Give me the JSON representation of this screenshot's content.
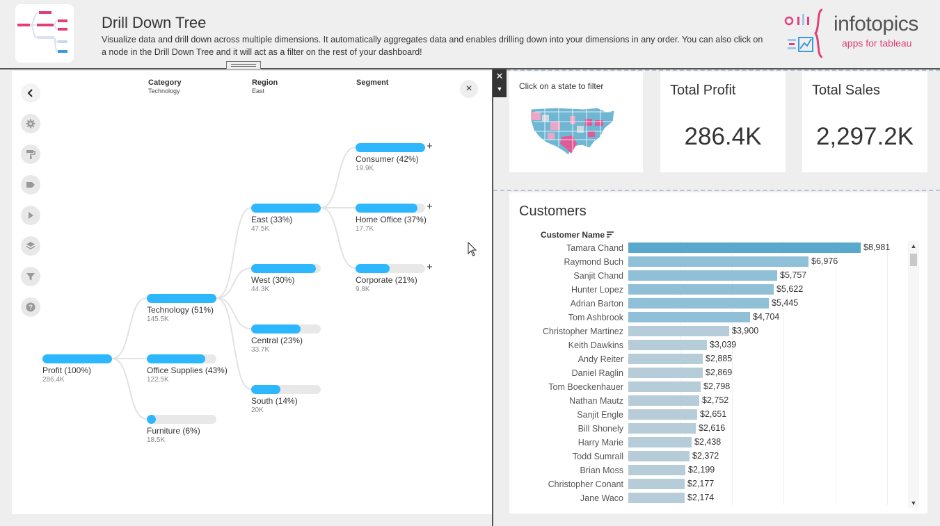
{
  "header": {
    "title": "Drill Down Tree",
    "desc1": "Visualize data and drill down across multiple dimensions. It automatically aggregates data and enables drilling down into your dimensions in any order. ",
    "desc2": "You can also click on a node in the Drill Down Tree and it will act as a filter on the rest of your dashboard!",
    "brand_name": "infotopics",
    "brand_sub": "apps for tableau"
  },
  "toolbar": {
    "items": [
      "back-icon",
      "gear-icon",
      "paint-roller-icon",
      "tag-icon",
      "play-icon",
      "layers-icon",
      "filter-icon",
      "help-icon"
    ]
  },
  "tree": {
    "columns": [
      {
        "title": "Category",
        "sub": "Technology"
      },
      {
        "title": "Region",
        "sub": "East"
      },
      {
        "title": "Segment",
        "sub": ""
      }
    ],
    "close": "×",
    "nodes": [
      {
        "label": "Profit (100%)",
        "value": "286.4K",
        "pct": 100,
        "plus": ""
      },
      {
        "label": "Technology (51%)",
        "value": "145.5K",
        "pct": 100,
        "plus": ""
      },
      {
        "label": "Office Supplies (43%)",
        "value": "122.5K",
        "pct": 84,
        "plus": ""
      },
      {
        "label": "Furniture (6%)",
        "value": "18.5K",
        "pct": 13,
        "plus": ""
      },
      {
        "label": "East (33%)",
        "value": "47.5K",
        "pct": 100,
        "plus": ""
      },
      {
        "label": "West (30%)",
        "value": "44.3K",
        "pct": 93,
        "plus": ""
      },
      {
        "label": "Central (23%)",
        "value": "33.7K",
        "pct": 71,
        "plus": ""
      },
      {
        "label": "South (14%)",
        "value": "20K",
        "pct": 42,
        "plus": ""
      },
      {
        "label": "Consumer (42%)",
        "value": "19.9K",
        "pct": 100,
        "plus": "+"
      },
      {
        "label": "Home Office (37%)",
        "value": "17.7K",
        "pct": 89,
        "plus": "+"
      },
      {
        "label": "Corporate (21%)",
        "value": "9.8K",
        "pct": 49,
        "plus": "+"
      }
    ]
  },
  "map": {
    "caption": "Click on a state to filter"
  },
  "kpis": {
    "profit_title": "Total Profit",
    "profit_value": "286.4K",
    "sales_title": "Total Sales",
    "sales_value": "2,297.2K"
  },
  "customers": {
    "title": "Customers",
    "column_header": "Customer Name",
    "rows": [
      {
        "name": "Tamara Chand",
        "amount": "$8,981",
        "value": 8981
      },
      {
        "name": "Raymond Buch",
        "amount": "$6,976",
        "value": 6976
      },
      {
        "name": "Sanjit Chand",
        "amount": "$5,757",
        "value": 5757
      },
      {
        "name": "Hunter Lopez",
        "amount": "$5,622",
        "value": 5622
      },
      {
        "name": "Adrian Barton",
        "amount": "$5,445",
        "value": 5445
      },
      {
        "name": "Tom Ashbrook",
        "amount": "$4,704",
        "value": 4704
      },
      {
        "name": "Christopher Martinez",
        "amount": "$3,900",
        "value": 3900
      },
      {
        "name": "Keith Dawkins",
        "amount": "$3,039",
        "value": 3039
      },
      {
        "name": "Andy Reiter",
        "amount": "$2,885",
        "value": 2885
      },
      {
        "name": "Daniel Raglin",
        "amount": "$2,869",
        "value": 2869
      },
      {
        "name": "Tom Boeckenhauer",
        "amount": "$2,798",
        "value": 2798
      },
      {
        "name": "Nathan Mautz",
        "amount": "$2,752",
        "value": 2752
      },
      {
        "name": "Sanjit Engle",
        "amount": "$2,651",
        "value": 2651
      },
      {
        "name": "Bill Shonely",
        "amount": "$2,616",
        "value": 2616
      },
      {
        "name": "Harry Marie",
        "amount": "$2,438",
        "value": 2438
      },
      {
        "name": "Todd Sumrall",
        "amount": "$2,372",
        "value": 2372
      },
      {
        "name": "Brian Moss",
        "amount": "$2,199",
        "value": 2199
      },
      {
        "name": "Christopher Conant",
        "amount": "$2,177",
        "value": 2177
      },
      {
        "name": "Jane Waco",
        "amount": "$2,174",
        "value": 2174
      }
    ]
  },
  "colors": {
    "node_fill": "#2db7ff",
    "node_track": "#e8e8e8",
    "bar_top": "#5aa8cc",
    "bar_low": "#b6ccd8",
    "brand_pink": "#e0407a"
  }
}
